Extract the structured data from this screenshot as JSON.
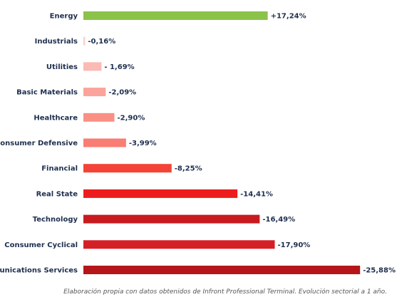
{
  "chart_data": {
    "type": "bar",
    "orientation": "horizontal",
    "categories": [
      "Energy",
      "Industrials",
      "Utilities",
      "Basic Materials",
      "Healthcare",
      "Consumer Defensive",
      "Financial",
      "Real State",
      "Technology",
      "Consumer Cyclical",
      "Communications Services"
    ],
    "values": [
      17.24,
      -0.16,
      -1.69,
      -2.09,
      -2.9,
      -3.99,
      -8.25,
      -14.41,
      -16.49,
      -17.9,
      -25.88
    ],
    "value_labels": [
      "+17,24%",
      "-0,16%",
      "- 1,69%",
      "-2,09%",
      "-2,90%",
      "-3,99%",
      "-8,25%",
      "-14,41%",
      "-16,49%",
      "-17,90%",
      "-25,88%"
    ],
    "colors": [
      "#8bc34a",
      "#f9d0cc",
      "#fbbab3",
      "#fba39a",
      "#fa8f84",
      "#f97d72",
      "#f44336",
      "#ee1d1d",
      "#c71b1f",
      "#d51f26",
      "#b5161a"
    ],
    "grid": false,
    "legend": "none"
  },
  "footnote": "Elaboración propia con datos obtenidos de Infront Professional Terminal. Evolución sectorial a 1 año."
}
